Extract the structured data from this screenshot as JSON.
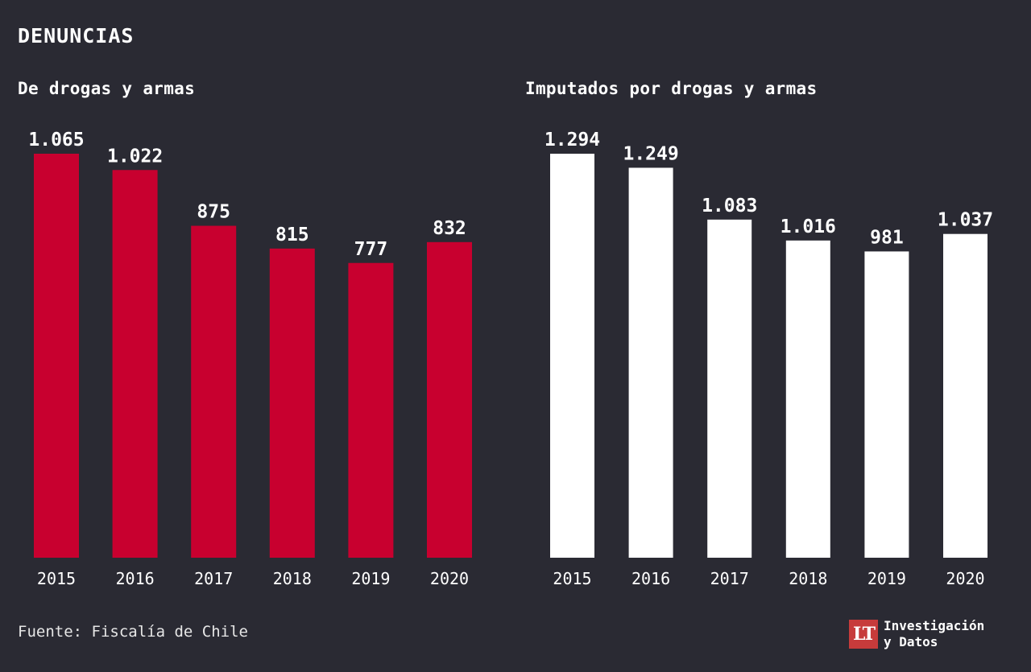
{
  "header": {
    "title": "DENUNCIAS"
  },
  "source": "Fuente: Fiscalía de Chile",
  "brand": {
    "logo_text": "LT",
    "line1": "Investigación",
    "line2": "y Datos"
  },
  "colors": {
    "background": "#2a2a33",
    "denuncias_bar": "#c8002f",
    "imputados_bar": "#ffffff",
    "text": "#ffffff"
  },
  "chart_data": [
    {
      "type": "bar",
      "title": "De drogas y armas",
      "categories": [
        "2015",
        "2016",
        "2017",
        "2018",
        "2019",
        "2020"
      ],
      "values": [
        1065,
        1022,
        875,
        815,
        777,
        832
      ],
      "value_labels": [
        "1.065",
        "1.022",
        "875",
        "815",
        "777",
        "832"
      ],
      "bar_color": "#c8002f",
      "ylim": [
        0,
        1065
      ],
      "grid": false
    },
    {
      "type": "bar",
      "title": "Imputados por drogas y armas",
      "categories": [
        "2015",
        "2016",
        "2017",
        "2018",
        "2019",
        "2020"
      ],
      "values": [
        1294,
        1249,
        1083,
        1016,
        981,
        1037
      ],
      "value_labels": [
        "1.294",
        "1.249",
        "1.083",
        "1.016",
        "981",
        "1.037"
      ],
      "bar_color": "#ffffff",
      "ylim": [
        0,
        1294
      ],
      "grid": false
    }
  ]
}
